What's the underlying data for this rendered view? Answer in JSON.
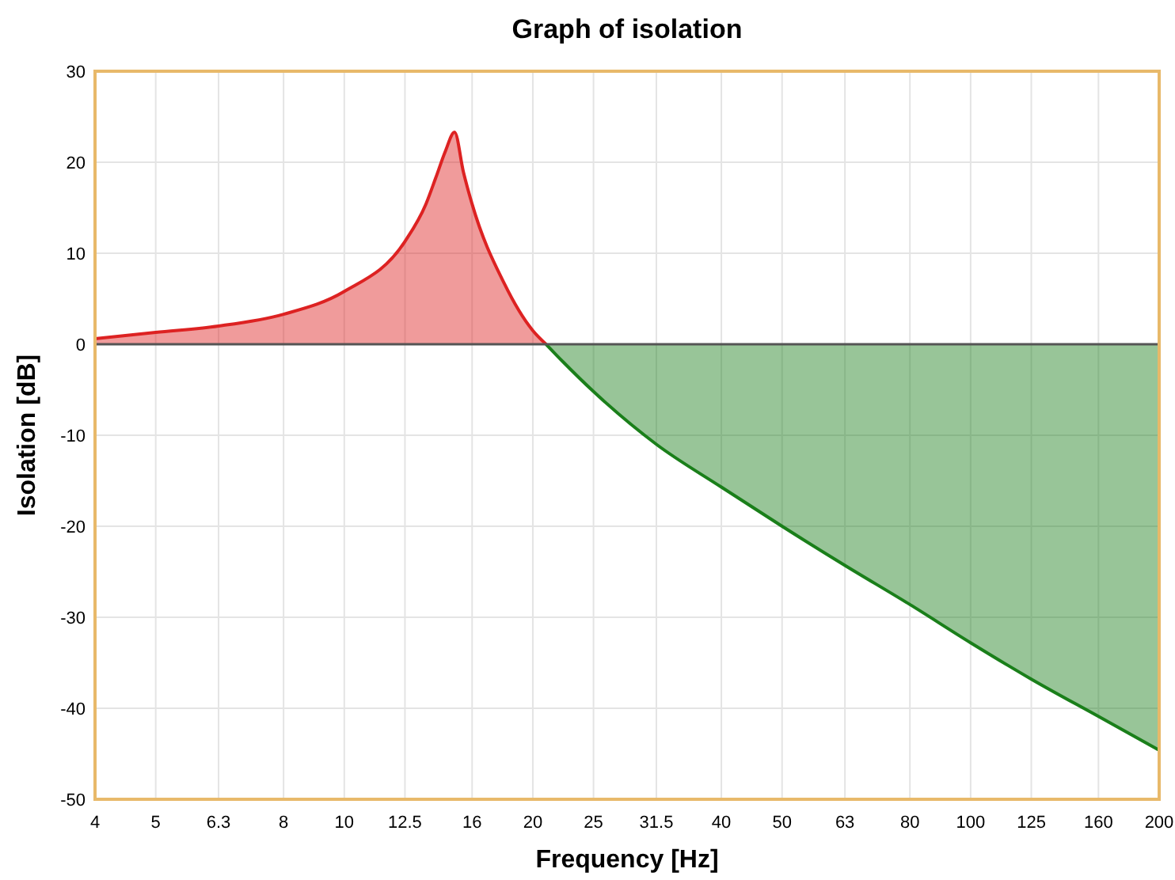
{
  "chart_data": {
    "type": "area",
    "title": "Graph of isolation",
    "xlabel": "Frequency [Hz]",
    "ylabel": "Isolation [dB]",
    "log": "x",
    "xlim": [
      4,
      200
    ],
    "xticks": [
      4,
      5,
      6.3,
      8,
      10,
      12.5,
      16,
      20,
      25,
      31.5,
      40,
      50,
      63,
      80,
      100,
      125,
      160,
      200
    ],
    "ylim": [
      -50,
      30
    ],
    "yticks": [
      -50,
      -40,
      -30,
      -20,
      -10,
      0,
      10,
      20,
      30
    ],
    "grid": true,
    "ref_lines": [
      {
        "axis": "y",
        "value": 0,
        "color": "#555555"
      }
    ],
    "series": [
      {
        "color": "#dd2222",
        "x": [
          4,
          5,
          6.3,
          8,
          10,
          12.5,
          13.5,
          14,
          14.5,
          15,
          15.5,
          16,
          18,
          20,
          21
        ],
        "values": [
          0.6,
          1.3,
          2.0,
          3.3,
          5.8,
          11.3,
          15.4,
          18.3,
          21.2,
          23.3,
          18.9,
          15.4,
          6.7,
          1.5,
          0
        ]
      },
      {
        "color": "#1a7f1a",
        "x": [
          21,
          22.4,
          25,
          31.5,
          40,
          50,
          63,
          80,
          100,
          125,
          160,
          200
        ],
        "values": [
          0,
          -2,
          -5.2,
          -11,
          -15.7,
          -20,
          -24.3,
          -28.6,
          -32.8,
          -36.8,
          -40.9,
          -44.6
        ]
      }
    ]
  }
}
